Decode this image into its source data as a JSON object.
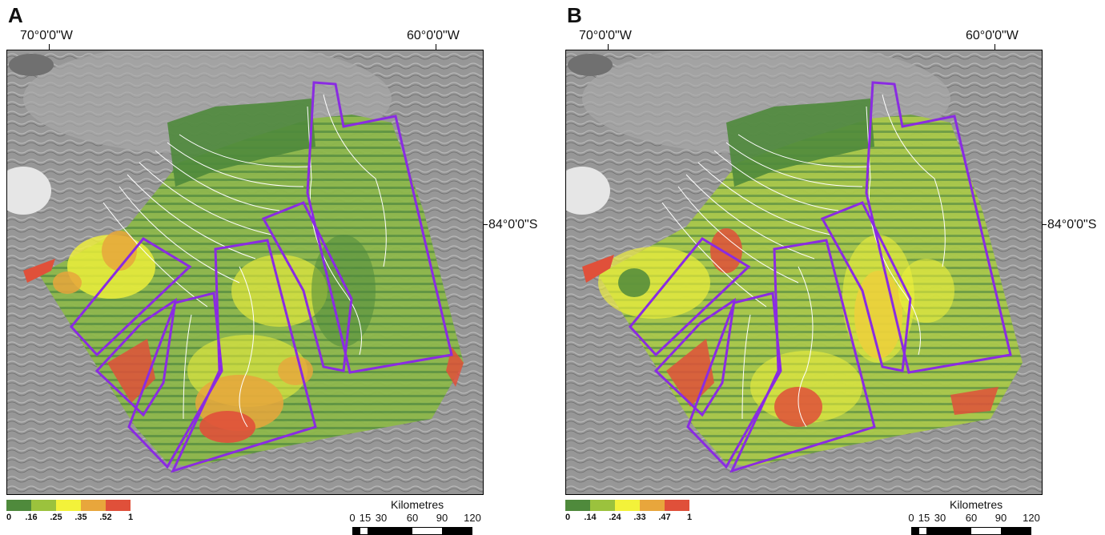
{
  "panels": [
    {
      "letter": "A",
      "lon_left": "70°0'0\"W",
      "lon_right": "60°0'0\"W",
      "lat": "84°0'0\"S",
      "legend_ticks": [
        "0",
        ".16",
        ".25",
        ".35",
        ".52",
        "1"
      ],
      "scale_title": "Kilometres",
      "scale_nums": [
        "0",
        "15",
        "30",
        "60",
        "90",
        "120"
      ]
    },
    {
      "letter": "B",
      "lon_left": "70°0'0\"W",
      "lon_right": "60°0'0\"W",
      "lat": "84°0'0\"S",
      "legend_ticks": [
        "0",
        ".14",
        ".24",
        ".33",
        ".47",
        "1"
      ],
      "scale_title": "Kilometres",
      "scale_nums": [
        "0",
        "15",
        "30",
        "60",
        "90",
        "120"
      ]
    }
  ],
  "colors": {
    "legend": [
      "#4f8a3c",
      "#9bc23d",
      "#f3f23a",
      "#e8a63c",
      "#e0503a"
    ],
    "outline": "#8a2be2",
    "contour": "#ffffff"
  }
}
